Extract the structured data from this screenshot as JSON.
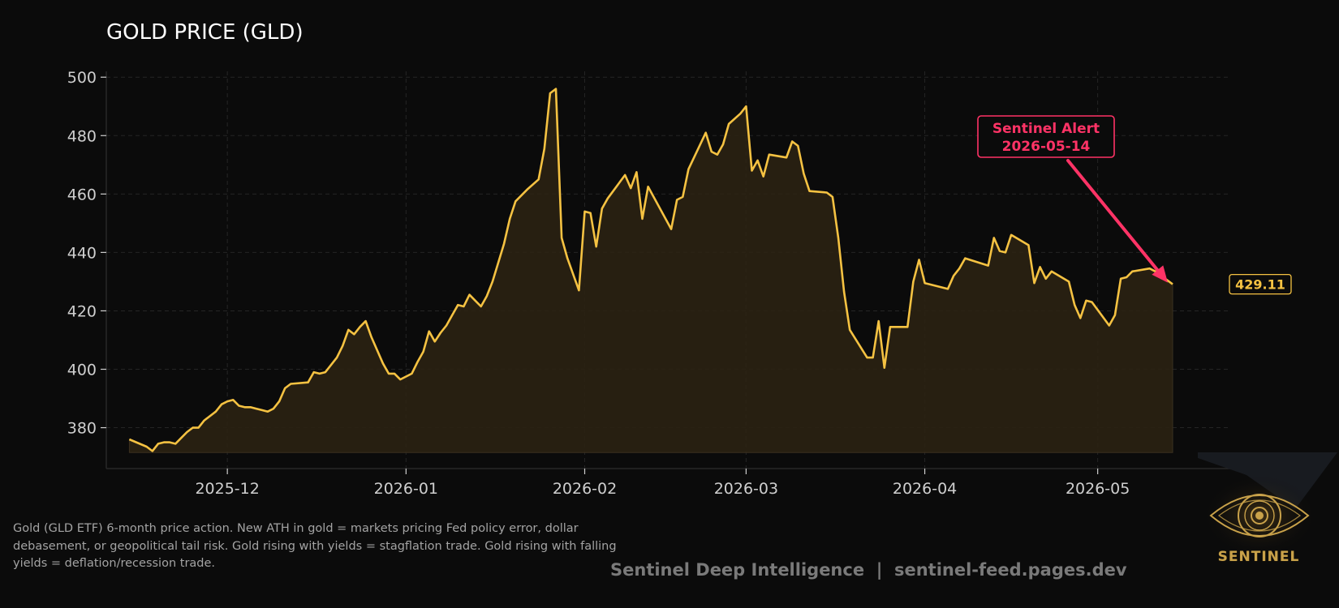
{
  "chart_data": {
    "type": "area",
    "title": "GOLD PRICE (GLD)",
    "xlabel": "",
    "ylabel": "",
    "x_range": [
      "2025-11-10",
      "2026-05-24"
    ],
    "ylim": [
      366,
      502
    ],
    "y_ticks": [
      380,
      400,
      420,
      440,
      460,
      480,
      500
    ],
    "x_ticks": [
      "2025-12-01",
      "2026-01-01",
      "2026-02-01",
      "2026-03-01",
      "2026-04-01",
      "2026-05-01"
    ],
    "x_tick_labels": [
      "2025-12",
      "2026-01",
      "2026-02",
      "2026-03",
      "2026-04",
      "2026-05"
    ],
    "fill_baseline": 371.5,
    "grid": true,
    "series": [
      {
        "color": "#f5c242",
        "points": [
          [
            "2025-11-14",
            376.0
          ],
          [
            "2025-11-17",
            373.5
          ],
          [
            "2025-11-18",
            372.0
          ],
          [
            "2025-11-19",
            374.5
          ],
          [
            "2025-11-20",
            375.0
          ],
          [
            "2025-11-21",
            375.0
          ],
          [
            "2025-11-22",
            374.5
          ],
          [
            "2025-11-23",
            376.5
          ],
          [
            "2025-11-24",
            378.5
          ],
          [
            "2025-11-25",
            380.0
          ],
          [
            "2025-11-26",
            380.0
          ],
          [
            "2025-11-27",
            382.5
          ],
          [
            "2025-11-29",
            385.5
          ],
          [
            "2025-11-30",
            388.0
          ],
          [
            "2025-12-01",
            389.0
          ],
          [
            "2025-12-02",
            389.5
          ],
          [
            "2025-12-03",
            387.5
          ],
          [
            "2025-12-04",
            387.0
          ],
          [
            "2025-12-05",
            387.0
          ],
          [
            "2025-12-06",
            386.5
          ],
          [
            "2025-12-07",
            386.0
          ],
          [
            "2025-12-08",
            385.5
          ],
          [
            "2025-12-09",
            386.5
          ],
          [
            "2025-12-10",
            389.0
          ],
          [
            "2025-12-11",
            393.5
          ],
          [
            "2025-12-12",
            395.0
          ],
          [
            "2025-12-15",
            395.5
          ],
          [
            "2025-12-16",
            399.0
          ],
          [
            "2025-12-17",
            398.5
          ],
          [
            "2025-12-18",
            399.0
          ],
          [
            "2025-12-19",
            401.5
          ],
          [
            "2025-12-20",
            404.0
          ],
          [
            "2025-12-21",
            408.0
          ],
          [
            "2025-12-22",
            413.5
          ],
          [
            "2025-12-23",
            412.0
          ],
          [
            "2025-12-24",
            414.5
          ],
          [
            "2025-12-25",
            416.5
          ],
          [
            "2025-12-26",
            411.0
          ],
          [
            "2025-12-28",
            402.0
          ],
          [
            "2025-12-29",
            398.5
          ],
          [
            "2025-12-30",
            398.5
          ],
          [
            "2025-12-31",
            396.5
          ],
          [
            "2026-01-02",
            398.5
          ],
          [
            "2026-01-03",
            402.5
          ],
          [
            "2026-01-04",
            406.0
          ],
          [
            "2026-01-05",
            413.0
          ],
          [
            "2026-01-06",
            409.5
          ],
          [
            "2026-01-07",
            412.5
          ],
          [
            "2026-01-08",
            415.0
          ],
          [
            "2026-01-09",
            418.5
          ],
          [
            "2026-01-10",
            422.0
          ],
          [
            "2026-01-11",
            421.5
          ],
          [
            "2026-01-12",
            425.5
          ],
          [
            "2026-01-13",
            423.5
          ],
          [
            "2026-01-14",
            421.5
          ],
          [
            "2026-01-15",
            425.0
          ],
          [
            "2026-01-16",
            430.0
          ],
          [
            "2026-01-17",
            436.5
          ],
          [
            "2026-01-18",
            443.0
          ],
          [
            "2026-01-19",
            451.5
          ],
          [
            "2026-01-20",
            457.5
          ],
          [
            "2026-01-22",
            461.5
          ],
          [
            "2026-01-24",
            465.0
          ],
          [
            "2026-01-25",
            475.5
          ],
          [
            "2026-01-26",
            494.5
          ],
          [
            "2026-01-27",
            496.0
          ],
          [
            "2026-01-28",
            445.0
          ],
          [
            "2026-01-29",
            438.0
          ],
          [
            "2026-01-31",
            427.0
          ],
          [
            "2026-02-01",
            454.0
          ],
          [
            "2026-02-02",
            453.5
          ],
          [
            "2026-02-03",
            442.0
          ],
          [
            "2026-02-04",
            455.0
          ],
          [
            "2026-02-05",
            458.5
          ],
          [
            "2026-02-08",
            466.5
          ],
          [
            "2026-02-09",
            462.0
          ],
          [
            "2026-02-10",
            467.5
          ],
          [
            "2026-02-11",
            451.5
          ],
          [
            "2026-02-12",
            462.5
          ],
          [
            "2026-02-16",
            448.0
          ],
          [
            "2026-02-17",
            458.0
          ],
          [
            "2026-02-18",
            459.0
          ],
          [
            "2026-02-19",
            468.5
          ],
          [
            "2026-02-22",
            481.0
          ],
          [
            "2026-02-23",
            474.5
          ],
          [
            "2026-02-24",
            473.5
          ],
          [
            "2026-02-25",
            477.0
          ],
          [
            "2026-02-26",
            484.0
          ],
          [
            "2026-02-28",
            487.5
          ],
          [
            "2026-03-01",
            490.0
          ],
          [
            "2026-03-02",
            468.0
          ],
          [
            "2026-03-03",
            471.5
          ],
          [
            "2026-03-04",
            466.0
          ],
          [
            "2026-03-05",
            473.5
          ],
          [
            "2026-03-08",
            472.5
          ],
          [
            "2026-03-09",
            478.0
          ],
          [
            "2026-03-10",
            476.5
          ],
          [
            "2026-03-11",
            467.0
          ],
          [
            "2026-03-12",
            461.0
          ],
          [
            "2026-03-15",
            460.5
          ],
          [
            "2026-03-16",
            459.0
          ],
          [
            "2026-03-17",
            445.0
          ],
          [
            "2026-03-18",
            426.5
          ],
          [
            "2026-03-19",
            413.5
          ],
          [
            "2026-03-22",
            404.0
          ],
          [
            "2026-03-23",
            404.0
          ],
          [
            "2026-03-24",
            416.5
          ],
          [
            "2026-03-25",
            400.5
          ],
          [
            "2026-03-26",
            414.5
          ],
          [
            "2026-03-29",
            414.5
          ],
          [
            "2026-03-30",
            430.0
          ],
          [
            "2026-03-31",
            437.5
          ],
          [
            "2026-04-01",
            429.5
          ],
          [
            "2026-04-05",
            427.5
          ],
          [
            "2026-04-06",
            432.0
          ],
          [
            "2026-04-07",
            434.5
          ],
          [
            "2026-04-08",
            438.0
          ],
          [
            "2026-04-12",
            435.5
          ],
          [
            "2026-04-13",
            445.0
          ],
          [
            "2026-04-14",
            440.5
          ],
          [
            "2026-04-15",
            440.0
          ],
          [
            "2026-04-16",
            446.0
          ],
          [
            "2026-04-19",
            442.5
          ],
          [
            "2026-04-20",
            429.5
          ],
          [
            "2026-04-21",
            435.0
          ],
          [
            "2026-04-22",
            431.0
          ],
          [
            "2026-04-23",
            433.5
          ],
          [
            "2026-04-26",
            430.0
          ],
          [
            "2026-04-27",
            422.0
          ],
          [
            "2026-04-28",
            417.5
          ],
          [
            "2026-04-29",
            423.5
          ],
          [
            "2026-04-30",
            423.0
          ],
          [
            "2026-05-03",
            415.0
          ],
          [
            "2026-05-04",
            418.5
          ],
          [
            "2026-05-05",
            431.0
          ],
          [
            "2026-05-06",
            431.5
          ],
          [
            "2026-05-07",
            433.5
          ],
          [
            "2026-05-10",
            434.5
          ],
          [
            "2026-05-11",
            433.5
          ],
          [
            "2026-05-14",
            429.11
          ]
        ]
      }
    ],
    "last_value_label": "429.11",
    "annotation": {
      "lines": [
        "Sentinel Alert",
        "2026-05-14"
      ],
      "target": [
        "2026-05-14",
        429.11
      ],
      "color": "#ff3366"
    }
  },
  "caption": "Gold (GLD ETF) 6-month price action. New ATH in gold = markets pricing Fed policy error, dollar debasement, or geopolitical tail risk. Gold rising with yields = stagflation trade. Gold rising with falling yields = deflation/recession trade.",
  "footer": "Sentinel Deep Intelligence  |  sentinel-feed.pages.dev",
  "logo": {
    "wordmark": "SENTINEL",
    "icon": "eye-icon"
  },
  "colors": {
    "background": "#0b0b0b",
    "line": "#f5c242",
    "fill": "#2a2212",
    "alert": "#ff3366",
    "grid": "#252525",
    "tick_text": "#cfcfcf"
  }
}
